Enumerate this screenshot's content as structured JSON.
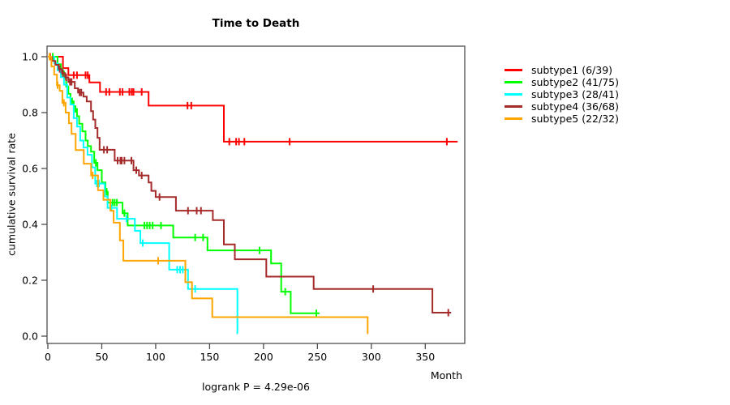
{
  "chart_data": {
    "type": "line",
    "subtype": "kaplan-meier-survival-steps",
    "title": "Time to Death",
    "xlabel": "Month",
    "ylabel": "cumulative survival rate",
    "annotation": "logrank P = 4.29e-06",
    "xlim": [
      0,
      386
    ],
    "ylim": [
      0.0,
      1.0
    ],
    "x_ticks": [
      0,
      50,
      100,
      150,
      200,
      250,
      300,
      350
    ],
    "y_ticks": [
      0.0,
      0.2,
      0.4,
      0.6,
      0.8,
      1.0
    ],
    "grid": false,
    "legend_position": "right-outside",
    "series": [
      {
        "name": "subtype1 (6/39)",
        "color": "#ff0000",
        "events": [
          [
            14,
            0.959
          ],
          [
            19,
            0.934
          ],
          [
            38.5,
            0.908
          ],
          [
            48.4,
            0.874
          ],
          [
            93.4,
            0.825
          ],
          [
            163.2,
            0.696
          ]
        ],
        "end": 380,
        "censors": [
          [
            2,
            1.0
          ],
          [
            24,
            0.934
          ],
          [
            27,
            0.934
          ],
          [
            35,
            0.934
          ],
          [
            37,
            0.934
          ],
          [
            54,
            0.874
          ],
          [
            57,
            0.874
          ],
          [
            66.8,
            0.874
          ],
          [
            69.3,
            0.874
          ],
          [
            75.6,
            0.874
          ],
          [
            77.8,
            0.874
          ],
          [
            79.4,
            0.874
          ],
          [
            87,
            0.874
          ],
          [
            129.5,
            0.825
          ],
          [
            133,
            0.825
          ],
          [
            168.3,
            0.696
          ],
          [
            174.6,
            0.696
          ],
          [
            177.2,
            0.696
          ],
          [
            182.3,
            0.696
          ],
          [
            224.2,
            0.696
          ],
          [
            370,
            0.696
          ]
        ]
      },
      {
        "name": "subtype2 (41/75)",
        "color": "#00ff00",
        "events": [
          [
            9,
            0.973
          ],
          [
            12,
            0.947
          ],
          [
            15,
            0.92
          ],
          [
            17,
            0.893
          ],
          [
            19,
            0.867
          ],
          [
            21,
            0.84
          ],
          [
            24,
            0.813
          ],
          [
            27,
            0.787
          ],
          [
            29,
            0.76
          ],
          [
            32,
            0.733
          ],
          [
            35,
            0.7
          ],
          [
            37,
            0.68
          ],
          [
            40,
            0.66
          ],
          [
            43,
            0.62
          ],
          [
            46,
            0.594
          ],
          [
            50,
            0.55
          ],
          [
            53.4,
            0.517
          ],
          [
            55.5,
            0.478
          ],
          [
            69.3,
            0.44
          ],
          [
            74,
            0.396
          ],
          [
            116.3,
            0.353
          ],
          [
            148,
            0.307
          ],
          [
            207,
            0.26
          ],
          [
            216.4,
            0.159
          ],
          [
            225.2,
            0.082
          ]
        ],
        "end": 252,
        "censors": [
          [
            4.6,
            1.0
          ],
          [
            13.5,
            0.947
          ],
          [
            22.5,
            0.84
          ],
          [
            25.5,
            0.813
          ],
          [
            44.5,
            0.62
          ],
          [
            54.5,
            0.517
          ],
          [
            60,
            0.478
          ],
          [
            62,
            0.478
          ],
          [
            64,
            0.478
          ],
          [
            71,
            0.44
          ],
          [
            89.6,
            0.396
          ],
          [
            92,
            0.396
          ],
          [
            94.5,
            0.396
          ],
          [
            97.2,
            0.396
          ],
          [
            104.9,
            0.396
          ],
          [
            136.6,
            0.353
          ],
          [
            144,
            0.353
          ],
          [
            196.3,
            0.307
          ],
          [
            220.2,
            0.159
          ],
          [
            249,
            0.082
          ]
        ]
      },
      {
        "name": "subtype3 (28/41)",
        "color": "#00ffff",
        "events": [
          [
            6,
            0.976
          ],
          [
            9,
            0.951
          ],
          [
            12,
            0.927
          ],
          [
            15,
            0.9
          ],
          [
            18,
            0.854
          ],
          [
            21,
            0.829
          ],
          [
            24,
            0.78
          ],
          [
            27,
            0.75
          ],
          [
            30,
            0.7
          ],
          [
            33,
            0.675
          ],
          [
            36.8,
            0.649
          ],
          [
            40.9,
            0.604
          ],
          [
            43.9,
            0.546
          ],
          [
            52.8,
            0.5
          ],
          [
            55.4,
            0.459
          ],
          [
            64.2,
            0.42
          ],
          [
            80.7,
            0.377
          ],
          [
            85.8,
            0.333
          ],
          [
            112.5,
            0.238
          ],
          [
            130,
            0.169
          ],
          [
            175.8,
            0.01
          ]
        ],
        "end": 176.1,
        "censors": [
          [
            45.5,
            0.546
          ],
          [
            47.5,
            0.546
          ],
          [
            59,
            0.459
          ],
          [
            73,
            0.42
          ],
          [
            88,
            0.333
          ],
          [
            120,
            0.238
          ],
          [
            122.6,
            0.238
          ],
          [
            125.1,
            0.238
          ],
          [
            136.6,
            0.169
          ]
        ]
      },
      {
        "name": "subtype4 (36/68)",
        "color": "#a52a2a",
        "events": [
          [
            4,
            0.985
          ],
          [
            7,
            0.971
          ],
          [
            10,
            0.956
          ],
          [
            13,
            0.941
          ],
          [
            16,
            0.926
          ],
          [
            19,
            0.91
          ],
          [
            25,
            0.887
          ],
          [
            28,
            0.872
          ],
          [
            33,
            0.857
          ],
          [
            36,
            0.84
          ],
          [
            40,
            0.805
          ],
          [
            42,
            0.775
          ],
          [
            44,
            0.745
          ],
          [
            46,
            0.71
          ],
          [
            48,
            0.667
          ],
          [
            62,
            0.628
          ],
          [
            79.4,
            0.594
          ],
          [
            84.5,
            0.575
          ],
          [
            93.4,
            0.55
          ],
          [
            96,
            0.52
          ],
          [
            100,
            0.498
          ],
          [
            118.8,
            0.449
          ],
          [
            153,
            0.415
          ],
          [
            163.2,
            0.328
          ],
          [
            173.4,
            0.275
          ],
          [
            202.6,
            0.213
          ],
          [
            246.5,
            0.169
          ],
          [
            356.6,
            0.084
          ]
        ],
        "end": 374,
        "censors": [
          [
            11,
            0.956
          ],
          [
            14,
            0.941
          ],
          [
            17,
            0.926
          ],
          [
            20.5,
            0.91
          ],
          [
            22,
            0.91
          ],
          [
            29.5,
            0.872
          ],
          [
            31,
            0.872
          ],
          [
            52,
            0.667
          ],
          [
            55,
            0.667
          ],
          [
            64.7,
            0.628
          ],
          [
            67.3,
            0.628
          ],
          [
            68.5,
            0.628
          ],
          [
            71,
            0.628
          ],
          [
            77.5,
            0.628
          ],
          [
            82,
            0.594
          ],
          [
            87,
            0.575
          ],
          [
            103.6,
            0.498
          ],
          [
            130,
            0.449
          ],
          [
            138,
            0.449
          ],
          [
            142,
            0.449
          ],
          [
            301.7,
            0.169
          ],
          [
            371.4,
            0.084
          ]
        ]
      },
      {
        "name": "subtype5 (22/32)",
        "color": "#ffa500",
        "events": [
          [
            3.3,
            0.965
          ],
          [
            5.9,
            0.936
          ],
          [
            8.4,
            0.898
          ],
          [
            11,
            0.878
          ],
          [
            13.5,
            0.835
          ],
          [
            16.5,
            0.8
          ],
          [
            19.5,
            0.762
          ],
          [
            22,
            0.724
          ],
          [
            25.8,
            0.666
          ],
          [
            33.3,
            0.617
          ],
          [
            40.1,
            0.575
          ],
          [
            46.5,
            0.522
          ],
          [
            51.5,
            0.488
          ],
          [
            58,
            0.449
          ],
          [
            61,
            0.406
          ],
          [
            66.8,
            0.343
          ],
          [
            70,
            0.27
          ],
          [
            127.5,
            0.193
          ],
          [
            133.7,
            0.135
          ],
          [
            152.5,
            0.068
          ],
          [
            296.6,
            0.01
          ]
        ],
        "end": 297,
        "censors": [
          [
            1.5,
            1.0
          ],
          [
            9,
            0.898
          ],
          [
            14.8,
            0.835
          ],
          [
            41.5,
            0.575
          ],
          [
            102.3,
            0.27
          ]
        ]
      }
    ]
  }
}
